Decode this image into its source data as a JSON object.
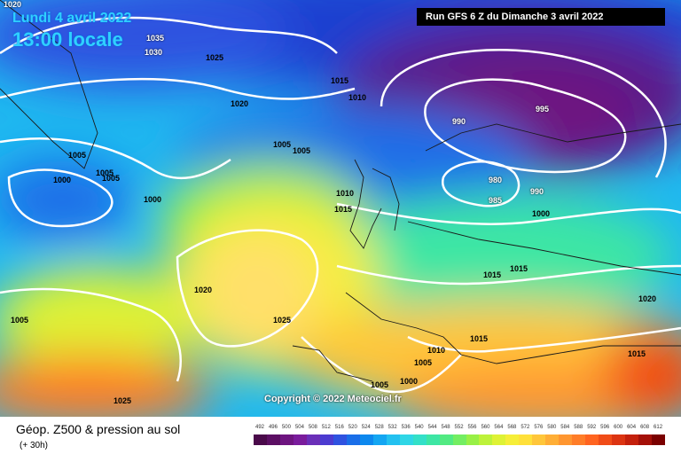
{
  "map": {
    "date_line": "Lundi 4 avril 2022",
    "time_line": "13:00 locale",
    "run_label": "Run GFS 6 Z du Dimanche 3 avril 2022",
    "copyright": "Copyright © 2022 Meteociel.fr",
    "pressure_labels": [
      "1020",
      "1035",
      "1030",
      "1025",
      "1020",
      "1015",
      "1010",
      "1005",
      "1005",
      "1005",
      "1005",
      "1000",
      "1000",
      "1005",
      "1010",
      "1015",
      "995",
      "990",
      "980",
      "985",
      "990",
      "1000",
      "1015",
      "1015",
      "1020",
      "1020",
      "1025",
      "1005",
      "1015",
      "1010",
      "1005",
      "1005",
      "1000",
      "1015",
      "1025"
    ]
  },
  "footer": {
    "title": "Géop. Z500 & pression au sol",
    "subtitle": "(+ 30h)",
    "legend_values": [
      "492",
      "496",
      "500",
      "504",
      "508",
      "512",
      "516",
      "520",
      "524",
      "528",
      "532",
      "536",
      "540",
      "544",
      "548",
      "552",
      "556",
      "560",
      "564",
      "568",
      "572",
      "576",
      "580",
      "584",
      "588",
      "592",
      "596",
      "600",
      "604",
      "608",
      "612"
    ],
    "legend_colors": [
      "#4a0a4a",
      "#5c0f63",
      "#6e1580",
      "#7a1c9c",
      "#6a2fb8",
      "#4c3bd0",
      "#2f52e0",
      "#1a6ee8",
      "#0d88ee",
      "#14a6f2",
      "#23c1f0",
      "#2fd6e6",
      "#33e0c8",
      "#3de6a4",
      "#52ea82",
      "#73ee62",
      "#98f046",
      "#bdf23a",
      "#def235",
      "#f6ee38",
      "#ffe03a",
      "#ffc63a",
      "#ffae36",
      "#ff9630",
      "#ff7d28",
      "#ff6420",
      "#f04c18",
      "#dc3412",
      "#c4200c",
      "#a41008",
      "#7a0000"
    ]
  }
}
